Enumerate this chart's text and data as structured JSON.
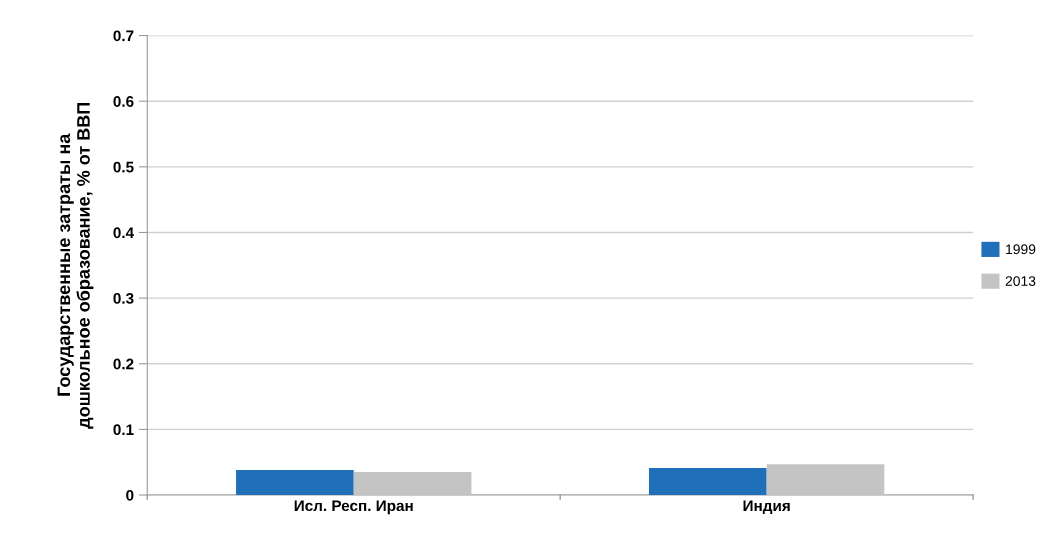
{
  "chart_data": {
    "type": "bar",
    "ylabel": "Государственные затраты на\nдошкольное образование, % от ВВП",
    "categories": [
      "Исл. Респ. Иран",
      "Индия"
    ],
    "series": [
      {
        "name": "1999",
        "color": "#1f6fb9",
        "values": [
          0.038,
          0.041
        ]
      },
      {
        "name": "2013",
        "color": "#c4c4c4",
        "values": [
          0.035,
          0.047
        ]
      }
    ],
    "ylim": [
      0,
      0.7
    ],
    "yticks": [
      {
        "value": 0,
        "label": "0"
      },
      0.1,
      0.2,
      0.3,
      0.4,
      0.5,
      0.6,
      0.7
    ],
    "grid": "y",
    "legend": "right"
  }
}
